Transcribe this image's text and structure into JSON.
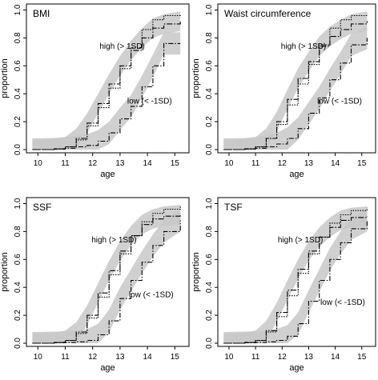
{
  "chart_data": [
    {
      "type": "line",
      "title": "BMI",
      "xlabel": "age",
      "ylabel": "proportion",
      "xlim": [
        9.7,
        15.4
      ],
      "ylim": [
        0,
        1.02
      ],
      "xticks": [
        10,
        11,
        12,
        13,
        14,
        15
      ],
      "yticks": [
        "0.0",
        "0.2",
        "0.4",
        "0.6",
        "0.8",
        "1.0"
      ],
      "annotations": [
        "high (> 1SD)",
        "low (< -1SD)"
      ],
      "series": [
        {
          "values": [
            [
              9.8,
              0
            ],
            [
              10.6,
              0.005
            ],
            [
              11.0,
              0.02
            ],
            [
              11.4,
              0.08
            ],
            [
              11.8,
              0.19
            ],
            [
              12.2,
              0.33
            ],
            [
              12.6,
              0.47
            ],
            [
              13.0,
              0.6
            ],
            [
              13.4,
              0.71
            ],
            [
              13.8,
              0.8
            ],
            [
              14.2,
              0.87
            ],
            [
              14.6,
              0.9
            ],
            [
              15.2,
              0.92
            ]
          ],
          "band": 0.07,
          "dash": "7,2,1.5,2"
        },
        {
          "values": [
            [
              9.8,
              0
            ],
            [
              10.6,
              0.005
            ],
            [
              11.0,
              0.02
            ],
            [
              11.4,
              0.07
            ],
            [
              11.8,
              0.17
            ],
            [
              12.2,
              0.3
            ],
            [
              12.6,
              0.44
            ],
            [
              13.0,
              0.58
            ],
            [
              13.4,
              0.73
            ],
            [
              13.8,
              0.86
            ],
            [
              14.2,
              0.93
            ],
            [
              14.6,
              0.96
            ],
            [
              15.2,
              0.97
            ]
          ],
          "band": 0.0,
          "dash": "1.5,1.5"
        },
        {
          "values": [
            [
              9.8,
              0
            ],
            [
              10.6,
              0.003
            ],
            [
              11.0,
              0.01
            ],
            [
              11.4,
              0.02
            ],
            [
              11.8,
              0.03
            ],
            [
              12.2,
              0.06
            ],
            [
              12.6,
              0.12
            ],
            [
              13.0,
              0.22
            ],
            [
              13.4,
              0.31
            ],
            [
              13.8,
              0.45
            ],
            [
              14.2,
              0.6
            ],
            [
              14.6,
              0.76
            ],
            [
              15.2,
              0.76
            ]
          ],
          "band": 0.08,
          "dash": "1.5,2,6,2"
        }
      ]
    },
    {
      "type": "line",
      "title": "Waist circumference",
      "xlabel": "age",
      "ylabel": "proportion",
      "xlim": [
        9.7,
        15.4
      ],
      "ylim": [
        0,
        1.02
      ],
      "xticks": [
        10,
        11,
        12,
        13,
        14,
        15
      ],
      "yticks": [
        "0.0",
        "0.2",
        "0.4",
        "0.6",
        "0.8",
        "1.0"
      ],
      "annotations": [
        "high (> 1SD)",
        "low (< -1SD)"
      ],
      "series": [
        {
          "values": [
            [
              9.8,
              0
            ],
            [
              10.6,
              0.005
            ],
            [
              11.0,
              0.02
            ],
            [
              11.4,
              0.08
            ],
            [
              11.8,
              0.2
            ],
            [
              12.2,
              0.36
            ],
            [
              12.6,
              0.51
            ],
            [
              13.0,
              0.63
            ],
            [
              13.4,
              0.74
            ],
            [
              13.8,
              0.81
            ],
            [
              14.2,
              0.86
            ],
            [
              14.6,
              0.9
            ],
            [
              15.2,
              0.92
            ]
          ],
          "band": 0.07,
          "dash": "7,2,1.5,2"
        },
        {
          "values": [
            [
              9.8,
              0
            ],
            [
              10.6,
              0.005
            ],
            [
              11.0,
              0.02
            ],
            [
              11.4,
              0.08
            ],
            [
              11.8,
              0.18
            ],
            [
              12.2,
              0.32
            ],
            [
              12.6,
              0.47
            ],
            [
              13.0,
              0.61
            ],
            [
              13.4,
              0.75
            ],
            [
              13.8,
              0.87
            ],
            [
              14.2,
              0.93
            ],
            [
              14.6,
              0.96
            ],
            [
              15.2,
              0.97
            ]
          ],
          "band": 0.0,
          "dash": "1.5,1.5"
        },
        {
          "values": [
            [
              9.8,
              0
            ],
            [
              10.6,
              0.003
            ],
            [
              11.0,
              0.01
            ],
            [
              11.4,
              0.02
            ],
            [
              11.8,
              0.04
            ],
            [
              12.2,
              0.08
            ],
            [
              12.6,
              0.15
            ],
            [
              13.0,
              0.26
            ],
            [
              13.4,
              0.37
            ],
            [
              13.8,
              0.5
            ],
            [
              14.2,
              0.62
            ],
            [
              14.6,
              0.75
            ],
            [
              15.2,
              0.8
            ]
          ],
          "band": 0.08,
          "dash": "1.5,2,6,2"
        }
      ]
    },
    {
      "type": "line",
      "title": "SSF",
      "xlabel": "age",
      "ylabel": "proportion",
      "xlim": [
        9.7,
        15.4
      ],
      "ylim": [
        0,
        1.02
      ],
      "xticks": [
        10,
        11,
        12,
        13,
        14,
        15
      ],
      "yticks": [
        "0.0",
        "0.2",
        "0.4",
        "0.6",
        "0.8",
        "1.0"
      ],
      "annotations": [
        "high (> 1SD)",
        "low (< -1SD)"
      ],
      "series": [
        {
          "values": [
            [
              9.8,
              0
            ],
            [
              10.6,
              0.005
            ],
            [
              11.0,
              0.02
            ],
            [
              11.4,
              0.08
            ],
            [
              11.8,
              0.2
            ],
            [
              12.2,
              0.36
            ],
            [
              12.6,
              0.52
            ],
            [
              13.0,
              0.66
            ],
            [
              13.4,
              0.77
            ],
            [
              13.8,
              0.85
            ],
            [
              14.2,
              0.89
            ],
            [
              14.6,
              0.91
            ],
            [
              15.2,
              0.92
            ]
          ],
          "band": 0.07,
          "dash": "7,2,1.5,2"
        },
        {
          "values": [
            [
              9.8,
              0
            ],
            [
              10.6,
              0.005
            ],
            [
              11.0,
              0.02
            ],
            [
              11.4,
              0.07
            ],
            [
              11.8,
              0.18
            ],
            [
              12.2,
              0.33
            ],
            [
              12.6,
              0.49
            ],
            [
              13.0,
              0.64
            ],
            [
              13.4,
              0.77
            ],
            [
              13.8,
              0.87
            ],
            [
              14.2,
              0.93
            ],
            [
              14.6,
              0.96
            ],
            [
              15.2,
              0.98
            ]
          ],
          "band": 0.0,
          "dash": "1.5,1.5"
        },
        {
          "values": [
            [
              9.8,
              0
            ],
            [
              10.6,
              0.003
            ],
            [
              11.0,
              0.005
            ],
            [
              11.4,
              0.01
            ],
            [
              11.8,
              0.02
            ],
            [
              12.2,
              0.06
            ],
            [
              12.6,
              0.16
            ],
            [
              13.0,
              0.32
            ],
            [
              13.4,
              0.45
            ],
            [
              13.8,
              0.58
            ],
            [
              14.2,
              0.7
            ],
            [
              14.6,
              0.8
            ],
            [
              15.2,
              0.88
            ]
          ],
          "band": 0.08,
          "dash": "1.5,2,6,2"
        }
      ]
    },
    {
      "type": "line",
      "title": "TSF",
      "xlabel": "age",
      "ylabel": "proportion",
      "xlim": [
        9.7,
        15.4
      ],
      "ylim": [
        0,
        1.02
      ],
      "xticks": [
        10,
        11,
        12,
        13,
        14,
        15
      ],
      "yticks": [
        "0.0",
        "0.2",
        "0.4",
        "0.6",
        "0.8",
        "1.0"
      ],
      "annotations": [
        "high (> 1SD)",
        "low (< -1SD)"
      ],
      "series": [
        {
          "values": [
            [
              9.8,
              0
            ],
            [
              10.6,
              0.005
            ],
            [
              11.0,
              0.02
            ],
            [
              11.4,
              0.09
            ],
            [
              11.8,
              0.22
            ],
            [
              12.2,
              0.38
            ],
            [
              12.6,
              0.53
            ],
            [
              13.0,
              0.66
            ],
            [
              13.4,
              0.76
            ],
            [
              13.8,
              0.83
            ],
            [
              14.2,
              0.88
            ],
            [
              14.6,
              0.9
            ],
            [
              15.2,
              0.91
            ]
          ],
          "band": 0.07,
          "dash": "7,2,1.5,2"
        },
        {
          "values": [
            [
              9.8,
              0
            ],
            [
              10.6,
              0.005
            ],
            [
              11.0,
              0.02
            ],
            [
              11.4,
              0.08
            ],
            [
              11.8,
              0.19
            ],
            [
              12.2,
              0.34
            ],
            [
              12.6,
              0.5
            ],
            [
              13.0,
              0.64
            ],
            [
              13.4,
              0.76
            ],
            [
              13.8,
              0.86
            ],
            [
              14.2,
              0.92
            ],
            [
              14.6,
              0.95
            ],
            [
              15.2,
              0.97
            ]
          ],
          "band": 0.0,
          "dash": "1.5,1.5"
        },
        {
          "values": [
            [
              9.8,
              0
            ],
            [
              10.6,
              0.003
            ],
            [
              11.0,
              0.005
            ],
            [
              11.4,
              0.01
            ],
            [
              11.8,
              0.02
            ],
            [
              12.2,
              0.05
            ],
            [
              12.6,
              0.14
            ],
            [
              13.0,
              0.3
            ],
            [
              13.4,
              0.45
            ],
            [
              13.8,
              0.6
            ],
            [
              14.2,
              0.72
            ],
            [
              14.6,
              0.82
            ],
            [
              15.2,
              0.88
            ]
          ],
          "band": 0.08,
          "dash": "1.5,2,6,2"
        }
      ]
    }
  ]
}
